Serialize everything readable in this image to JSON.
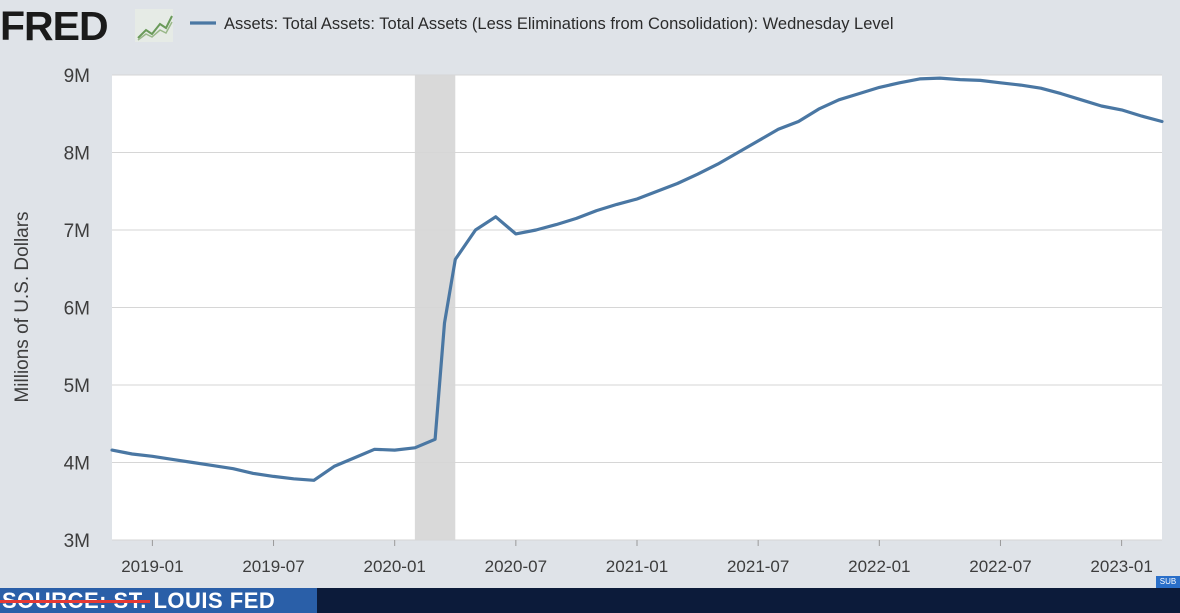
{
  "header": {
    "logo_text": "FRED",
    "logo_icon": "line-chart-icon",
    "legend_label": "Assets: Total Assets: Total Assets (Less Eliminations from Consolidation): Wednesday Level"
  },
  "footer": {
    "source_label": "SOURCE: ST. LOUIS FED",
    "badge": "SUB"
  },
  "colors": {
    "line": "#4a77a3",
    "recession": "#d9d9d9",
    "plot_background": "#ffffff",
    "page_background": "#dfe3e8",
    "text": "#3d3d3d"
  },
  "chart_data": {
    "type": "line",
    "title": "Assets: Total Assets: Total Assets (Less Eliminations from Consolidation): Wednesday Level",
    "xlabel": "",
    "ylabel": "Millions of U.S. Dollars",
    "ylim": [
      3000000,
      9000000
    ],
    "xlim": [
      "2018-11",
      "2023-03"
    ],
    "yticks": [
      {
        "value": 3000000,
        "label": "3M"
      },
      {
        "value": 4000000,
        "label": "4M"
      },
      {
        "value": 5000000,
        "label": "5M"
      },
      {
        "value": 6000000,
        "label": "6M"
      },
      {
        "value": 7000000,
        "label": "7M"
      },
      {
        "value": 8000000,
        "label": "8M"
      },
      {
        "value": 9000000,
        "label": "9M"
      }
    ],
    "xticks": [
      {
        "value": "2019-01",
        "label": "2019-01"
      },
      {
        "value": "2019-07",
        "label": "2019-07"
      },
      {
        "value": "2020-01",
        "label": "2020-01"
      },
      {
        "value": "2020-07",
        "label": "2020-07"
      },
      {
        "value": "2021-01",
        "label": "2021-01"
      },
      {
        "value": "2021-07",
        "label": "2021-07"
      },
      {
        "value": "2022-01",
        "label": "2022-01"
      },
      {
        "value": "2022-07",
        "label": "2022-07"
      },
      {
        "value": "2023-01",
        "label": "2023-01"
      }
    ],
    "recession": {
      "start": "2020-02",
      "end": "2020-04"
    },
    "grid": true,
    "legend": "top-left",
    "series": [
      {
        "name": "Assets: Total Assets: Total Assets (Less Eliminations from Consolidation): Wednesday Level",
        "x": [
          "2018-11",
          "2018-12",
          "2019-01",
          "2019-02",
          "2019-03",
          "2019-04",
          "2019-05",
          "2019-06",
          "2019-07",
          "2019-08",
          "2019-09",
          "2019-10",
          "2019-11",
          "2019-12",
          "2020-01",
          "2020-02",
          "2020-03",
          "2020-03-15",
          "2020-04",
          "2020-05",
          "2020-06",
          "2020-07",
          "2020-08",
          "2020-09",
          "2020-10",
          "2020-11",
          "2020-12",
          "2021-01",
          "2021-02",
          "2021-03",
          "2021-04",
          "2021-05",
          "2021-06",
          "2021-07",
          "2021-08",
          "2021-09",
          "2021-10",
          "2021-11",
          "2021-12",
          "2022-01",
          "2022-02",
          "2022-03",
          "2022-04",
          "2022-05",
          "2022-06",
          "2022-07",
          "2022-08",
          "2022-09",
          "2022-10",
          "2022-11",
          "2022-12",
          "2023-01",
          "2023-02",
          "2023-03"
        ],
        "values": [
          4160000,
          4110000,
          4080000,
          4040000,
          4000000,
          3960000,
          3920000,
          3860000,
          3820000,
          3790000,
          3770000,
          3950000,
          4060000,
          4170000,
          4160000,
          4190000,
          4300000,
          5800000,
          6620000,
          7000000,
          7170000,
          6950000,
          7000000,
          7070000,
          7150000,
          7250000,
          7330000,
          7400000,
          7500000,
          7600000,
          7720000,
          7850000,
          8000000,
          8150000,
          8300000,
          8400000,
          8560000,
          8680000,
          8760000,
          8840000,
          8900000,
          8950000,
          8960000,
          8940000,
          8930000,
          8900000,
          8870000,
          8830000,
          8760000,
          8680000,
          8600000,
          8550000,
          8470000,
          8400000
        ]
      }
    ]
  }
}
